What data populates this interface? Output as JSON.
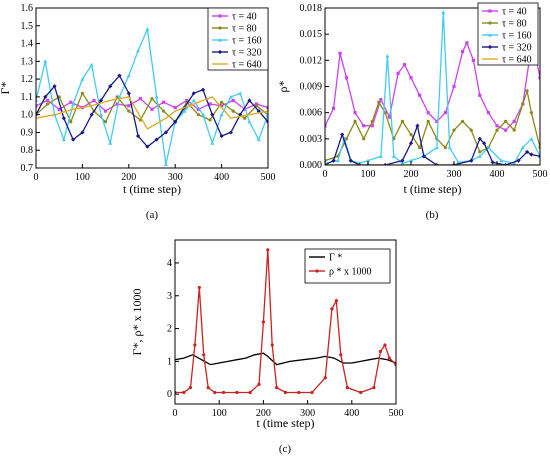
{
  "chart_data": [
    {
      "id": "a",
      "type": "line",
      "caption": "(a)",
      "xlabel": "t (time step)",
      "ylabel": "Γ*",
      "xlim": [
        0,
        500
      ],
      "ylim": [
        0.7,
        1.6
      ],
      "xticks": [
        0,
        100,
        200,
        300,
        400,
        500
      ],
      "yticks": [
        0.7,
        0.8,
        0.9,
        1.0,
        1.1,
        1.2,
        1.3,
        1.4,
        1.5,
        1.6
      ],
      "grid": false,
      "legend": "top-right",
      "series": [
        {
          "name": "τ = 40",
          "color": "#cc44ee",
          "marker": "square",
          "x": [
            0,
            25,
            50,
            75,
            100,
            125,
            150,
            175,
            200,
            225,
            250,
            275,
            300,
            325,
            350,
            375,
            400,
            425,
            450,
            475,
            500
          ],
          "y": [
            1.05,
            1.08,
            1.03,
            1.07,
            1.04,
            1.08,
            1.02,
            1.06,
            1.05,
            1.09,
            1.03,
            1.07,
            1.04,
            1.08,
            1.03,
            1.06,
            1.05,
            1.08,
            1.03,
            1.06,
            1.04
          ]
        },
        {
          "name": "τ = 80",
          "color": "#8a8a1a",
          "marker": "circle",
          "x": [
            0,
            25,
            50,
            75,
            100,
            125,
            150,
            175,
            200,
            225,
            250,
            275,
            300,
            325,
            350,
            375,
            400,
            425,
            450,
            475,
            500
          ],
          "y": [
            1.0,
            1.06,
            1.1,
            0.96,
            1.12,
            1.02,
            0.96,
            1.1,
            1.02,
            0.97,
            1.09,
            1.02,
            0.96,
            1.07,
            1.0,
            0.97,
            1.07,
            1.02,
            0.98,
            1.05,
            1.0
          ]
        },
        {
          "name": "τ = 160",
          "color": "#44ccee",
          "marker": "triangle",
          "x": [
            0,
            20,
            40,
            60,
            80,
            100,
            120,
            140,
            160,
            180,
            200,
            220,
            240,
            260,
            280,
            300,
            320,
            340,
            360,
            380,
            400,
            420,
            440,
            460,
            480,
            500
          ],
          "y": [
            1.08,
            1.3,
            1.0,
            0.86,
            1.06,
            1.2,
            1.28,
            1.0,
            0.84,
            1.1,
            1.22,
            1.36,
            1.48,
            1.1,
            0.72,
            0.96,
            1.02,
            1.08,
            1.0,
            0.84,
            1.0,
            1.1,
            1.12,
            0.96,
            0.86,
            1.0
          ]
        },
        {
          "name": "τ = 320",
          "color": "#1a1a8a",
          "marker": "diamond",
          "x": [
            0,
            20,
            40,
            60,
            80,
            100,
            120,
            140,
            160,
            180,
            200,
            220,
            240,
            260,
            280,
            300,
            320,
            340,
            360,
            380,
            400,
            420,
            440,
            460,
            480,
            500
          ],
          "y": [
            1.0,
            1.1,
            1.16,
            0.98,
            0.86,
            0.9,
            1.0,
            1.08,
            1.16,
            1.22,
            1.12,
            0.88,
            0.82,
            0.86,
            0.9,
            0.96,
            1.04,
            1.12,
            1.14,
            1.0,
            0.88,
            0.9,
            1.0,
            1.08,
            1.02,
            0.96
          ]
        },
        {
          "name": "τ = 640",
          "color": "#ddaa22",
          "marker": "none",
          "x": [
            0,
            40,
            80,
            120,
            160,
            200,
            240,
            280,
            300,
            340,
            380,
            420,
            460,
            500
          ],
          "y": [
            0.98,
            1.0,
            1.03,
            1.05,
            1.08,
            1.1,
            0.92,
            0.98,
            1.02,
            1.06,
            1.1,
            0.98,
            1.0,
            1.02
          ]
        }
      ]
    },
    {
      "id": "b",
      "type": "line",
      "caption": "(b)",
      "xlabel": "t (time step)",
      "ylabel": "ρ*",
      "xlim": [
        0,
        500
      ],
      "ylim": [
        0,
        0.018
      ],
      "xticks": [
        0,
        100,
        200,
        300,
        400,
        500
      ],
      "yticks": [
        0.0,
        0.003,
        0.006,
        0.009,
        0.012,
        0.015,
        0.018
      ],
      "yticklabels": [
        "0.000",
        "0.003",
        "0.006",
        "0.009",
        "0.012",
        "0.015",
        "0.018"
      ],
      "grid": false,
      "legend": "top-right",
      "series": [
        {
          "name": "τ = 40",
          "color": "#cc44ee",
          "marker": "square",
          "x": [
            0,
            20,
            35,
            50,
            70,
            90,
            110,
            130,
            150,
            170,
            185,
            200,
            220,
            240,
            260,
            280,
            300,
            320,
            330,
            345,
            360,
            380,
            400,
            420,
            440,
            460,
            475,
            490,
            500
          ],
          "y": [
            0.0045,
            0.0065,
            0.0128,
            0.01,
            0.006,
            0.0045,
            0.0045,
            0.0075,
            0.0055,
            0.0105,
            0.0115,
            0.01,
            0.008,
            0.006,
            0.005,
            0.006,
            0.009,
            0.013,
            0.014,
            0.012,
            0.008,
            0.006,
            0.0045,
            0.004,
            0.005,
            0.007,
            0.012,
            0.0125,
            0.01
          ]
        },
        {
          "name": "τ = 80",
          "color": "#8a8a1a",
          "marker": "circle",
          "x": [
            0,
            30,
            50,
            70,
            90,
            110,
            125,
            140,
            160,
            180,
            200,
            220,
            240,
            260,
            280,
            300,
            320,
            340,
            360,
            380,
            400,
            420,
            440,
            460,
            470,
            480,
            500
          ],
          "y": [
            0.0005,
            0.001,
            0.003,
            0.005,
            0.003,
            0.005,
            0.0072,
            0.006,
            0.003,
            0.005,
            0.0035,
            0.002,
            0.005,
            0.003,
            0.002,
            0.004,
            0.005,
            0.004,
            0.0015,
            0.002,
            0.004,
            0.005,
            0.004,
            0.007,
            0.0085,
            0.006,
            0.002
          ]
        },
        {
          "name": "τ = 160",
          "color": "#44ccee",
          "marker": "triangle",
          "x": [
            0,
            30,
            45,
            60,
            80,
            100,
            130,
            145,
            160,
            180,
            200,
            230,
            260,
            275,
            290,
            310,
            340,
            360,
            380,
            410,
            440,
            460,
            480,
            500
          ],
          "y": [
            0.0002,
            0.0005,
            0.003,
            0.0005,
            0.0002,
            0.0005,
            0.001,
            0.0125,
            0.001,
            0.0002,
            0.0005,
            0.001,
            0.002,
            0.0175,
            0.002,
            0.0003,
            0.0005,
            0.001,
            0.002,
            0.0005,
            0.0002,
            0.002,
            0.003,
            0.001
          ]
        },
        {
          "name": "τ = 320",
          "color": "#1a1a8a",
          "marker": "diamond",
          "x": [
            0,
            20,
            40,
            60,
            80,
            100,
            140,
            180,
            200,
            215,
            230,
            260,
            300,
            340,
            360,
            370,
            390,
            420,
            450,
            470,
            480,
            500
          ],
          "y": [
            0.0,
            0.0005,
            0.0035,
            0.0005,
            0.0,
            0.0,
            0.0,
            0.0005,
            0.0025,
            0.0045,
            0.001,
            0.0,
            0.0,
            0.0005,
            0.003,
            0.0025,
            0.0003,
            0.0,
            0.0005,
            0.0015,
            0.0012,
            0.001
          ]
        },
        {
          "name": "τ = 640",
          "color": "#ddaa22",
          "marker": "none",
          "x": [
            0,
            100,
            200,
            300,
            400,
            500
          ],
          "y": [
            0.0,
            0.0,
            0.0,
            0.0,
            0.0,
            0.0
          ]
        }
      ]
    },
    {
      "id": "c",
      "type": "line",
      "caption": "(c)",
      "xlabel": "t (time step)",
      "ylabel": "Γ*, ρ* x 1000",
      "xlim": [
        0,
        500
      ],
      "ylim": [
        -0.3,
        4.7
      ],
      "xticks": [
        0,
        100,
        200,
        300,
        400,
        500
      ],
      "yticks": [
        0,
        1,
        2,
        3,
        4
      ],
      "grid": false,
      "legend": "top-right",
      "series": [
        {
          "name": "Γ *",
          "color": "#000000",
          "marker": "none",
          "x": [
            0,
            20,
            40,
            60,
            80,
            100,
            120,
            140,
            160,
            180,
            200,
            210,
            230,
            260,
            290,
            320,
            340,
            360,
            380,
            400,
            420,
            440,
            460,
            480,
            500
          ],
          "y": [
            1.05,
            1.1,
            1.2,
            1.05,
            0.9,
            0.95,
            1.0,
            1.05,
            1.1,
            1.2,
            1.25,
            1.15,
            0.9,
            1.0,
            1.05,
            1.1,
            1.15,
            1.1,
            0.95,
            0.95,
            1.0,
            1.05,
            1.1,
            1.05,
            0.95
          ]
        },
        {
          "name": "ρ * x 1000",
          "color": "#cc2222",
          "marker": "circle",
          "x": [
            0,
            20,
            35,
            45,
            55,
            65,
            75,
            90,
            110,
            140,
            170,
            190,
            200,
            210,
            220,
            230,
            250,
            280,
            310,
            340,
            355,
            365,
            375,
            390,
            420,
            450,
            465,
            475,
            485,
            500
          ],
          "y": [
            0.05,
            0.05,
            0.2,
            1.5,
            3.25,
            1.2,
            0.2,
            0.05,
            0.05,
            0.05,
            0.05,
            0.3,
            2.2,
            4.4,
            1.5,
            0.2,
            0.05,
            0.05,
            0.05,
            0.5,
            2.6,
            2.85,
            1.2,
            0.2,
            0.05,
            0.2,
            1.3,
            1.5,
            1.1,
            0.9
          ]
        }
      ]
    }
  ]
}
